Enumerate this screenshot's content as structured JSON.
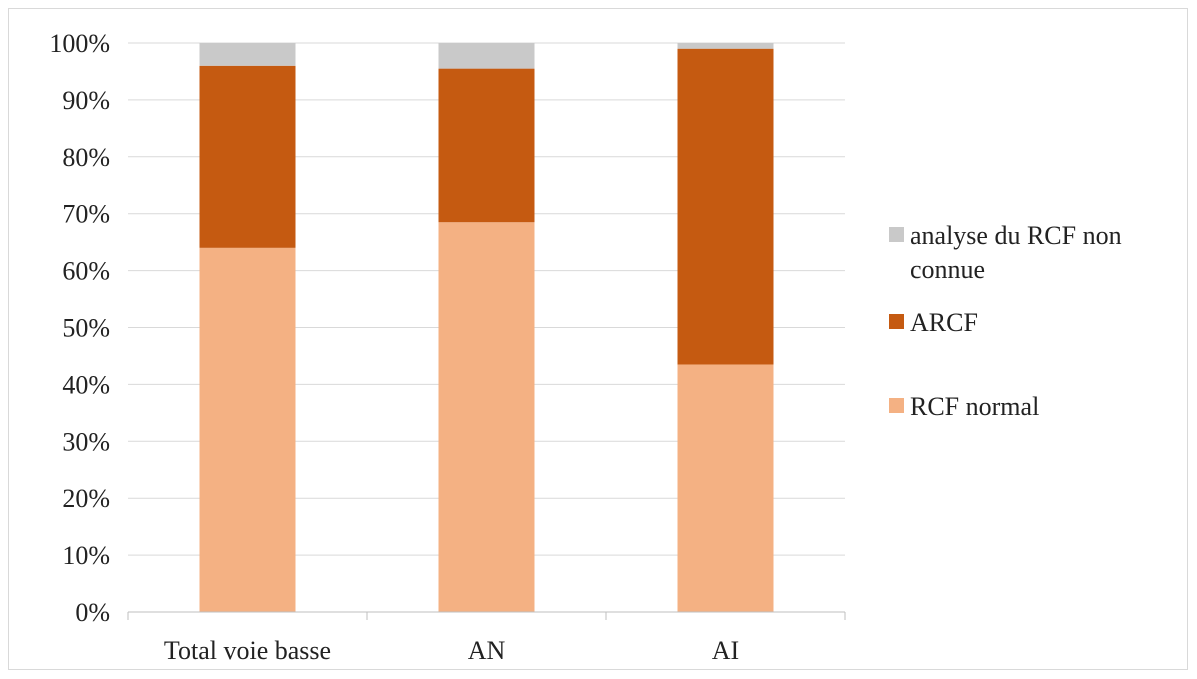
{
  "chart_data": {
    "type": "bar",
    "stacked": true,
    "normalized": true,
    "categories": [
      "Total voie basse",
      "AN",
      "AI"
    ],
    "series": [
      {
        "name": "RCF normal",
        "values": [
          64,
          68.5,
          43.5
        ],
        "color": "#f4b183"
      },
      {
        "name": "ARCF",
        "values": [
          32,
          27,
          55.5
        ],
        "color": "#c55a11"
      },
      {
        "name": "analyse du RCF non connue",
        "values": [
          4,
          4.5,
          1
        ],
        "color": "#c9c9c9"
      }
    ],
    "ylim": [
      0,
      100
    ],
    "y_ticks": [
      "0%",
      "10%",
      "20%",
      "30%",
      "40%",
      "50%",
      "60%",
      "70%",
      "80%",
      "90%",
      "100%"
    ],
    "grid": true,
    "legend": {
      "position": "right",
      "items": [
        {
          "label_lines": [
            "analyse du RCF non",
            "connue"
          ],
          "color": "#c9c9c9"
        },
        {
          "label_lines": [
            "ARCF"
          ],
          "color": "#c55a11"
        },
        {
          "label_lines": [
            "RCF normal"
          ],
          "color": "#f4b183"
        }
      ]
    }
  }
}
